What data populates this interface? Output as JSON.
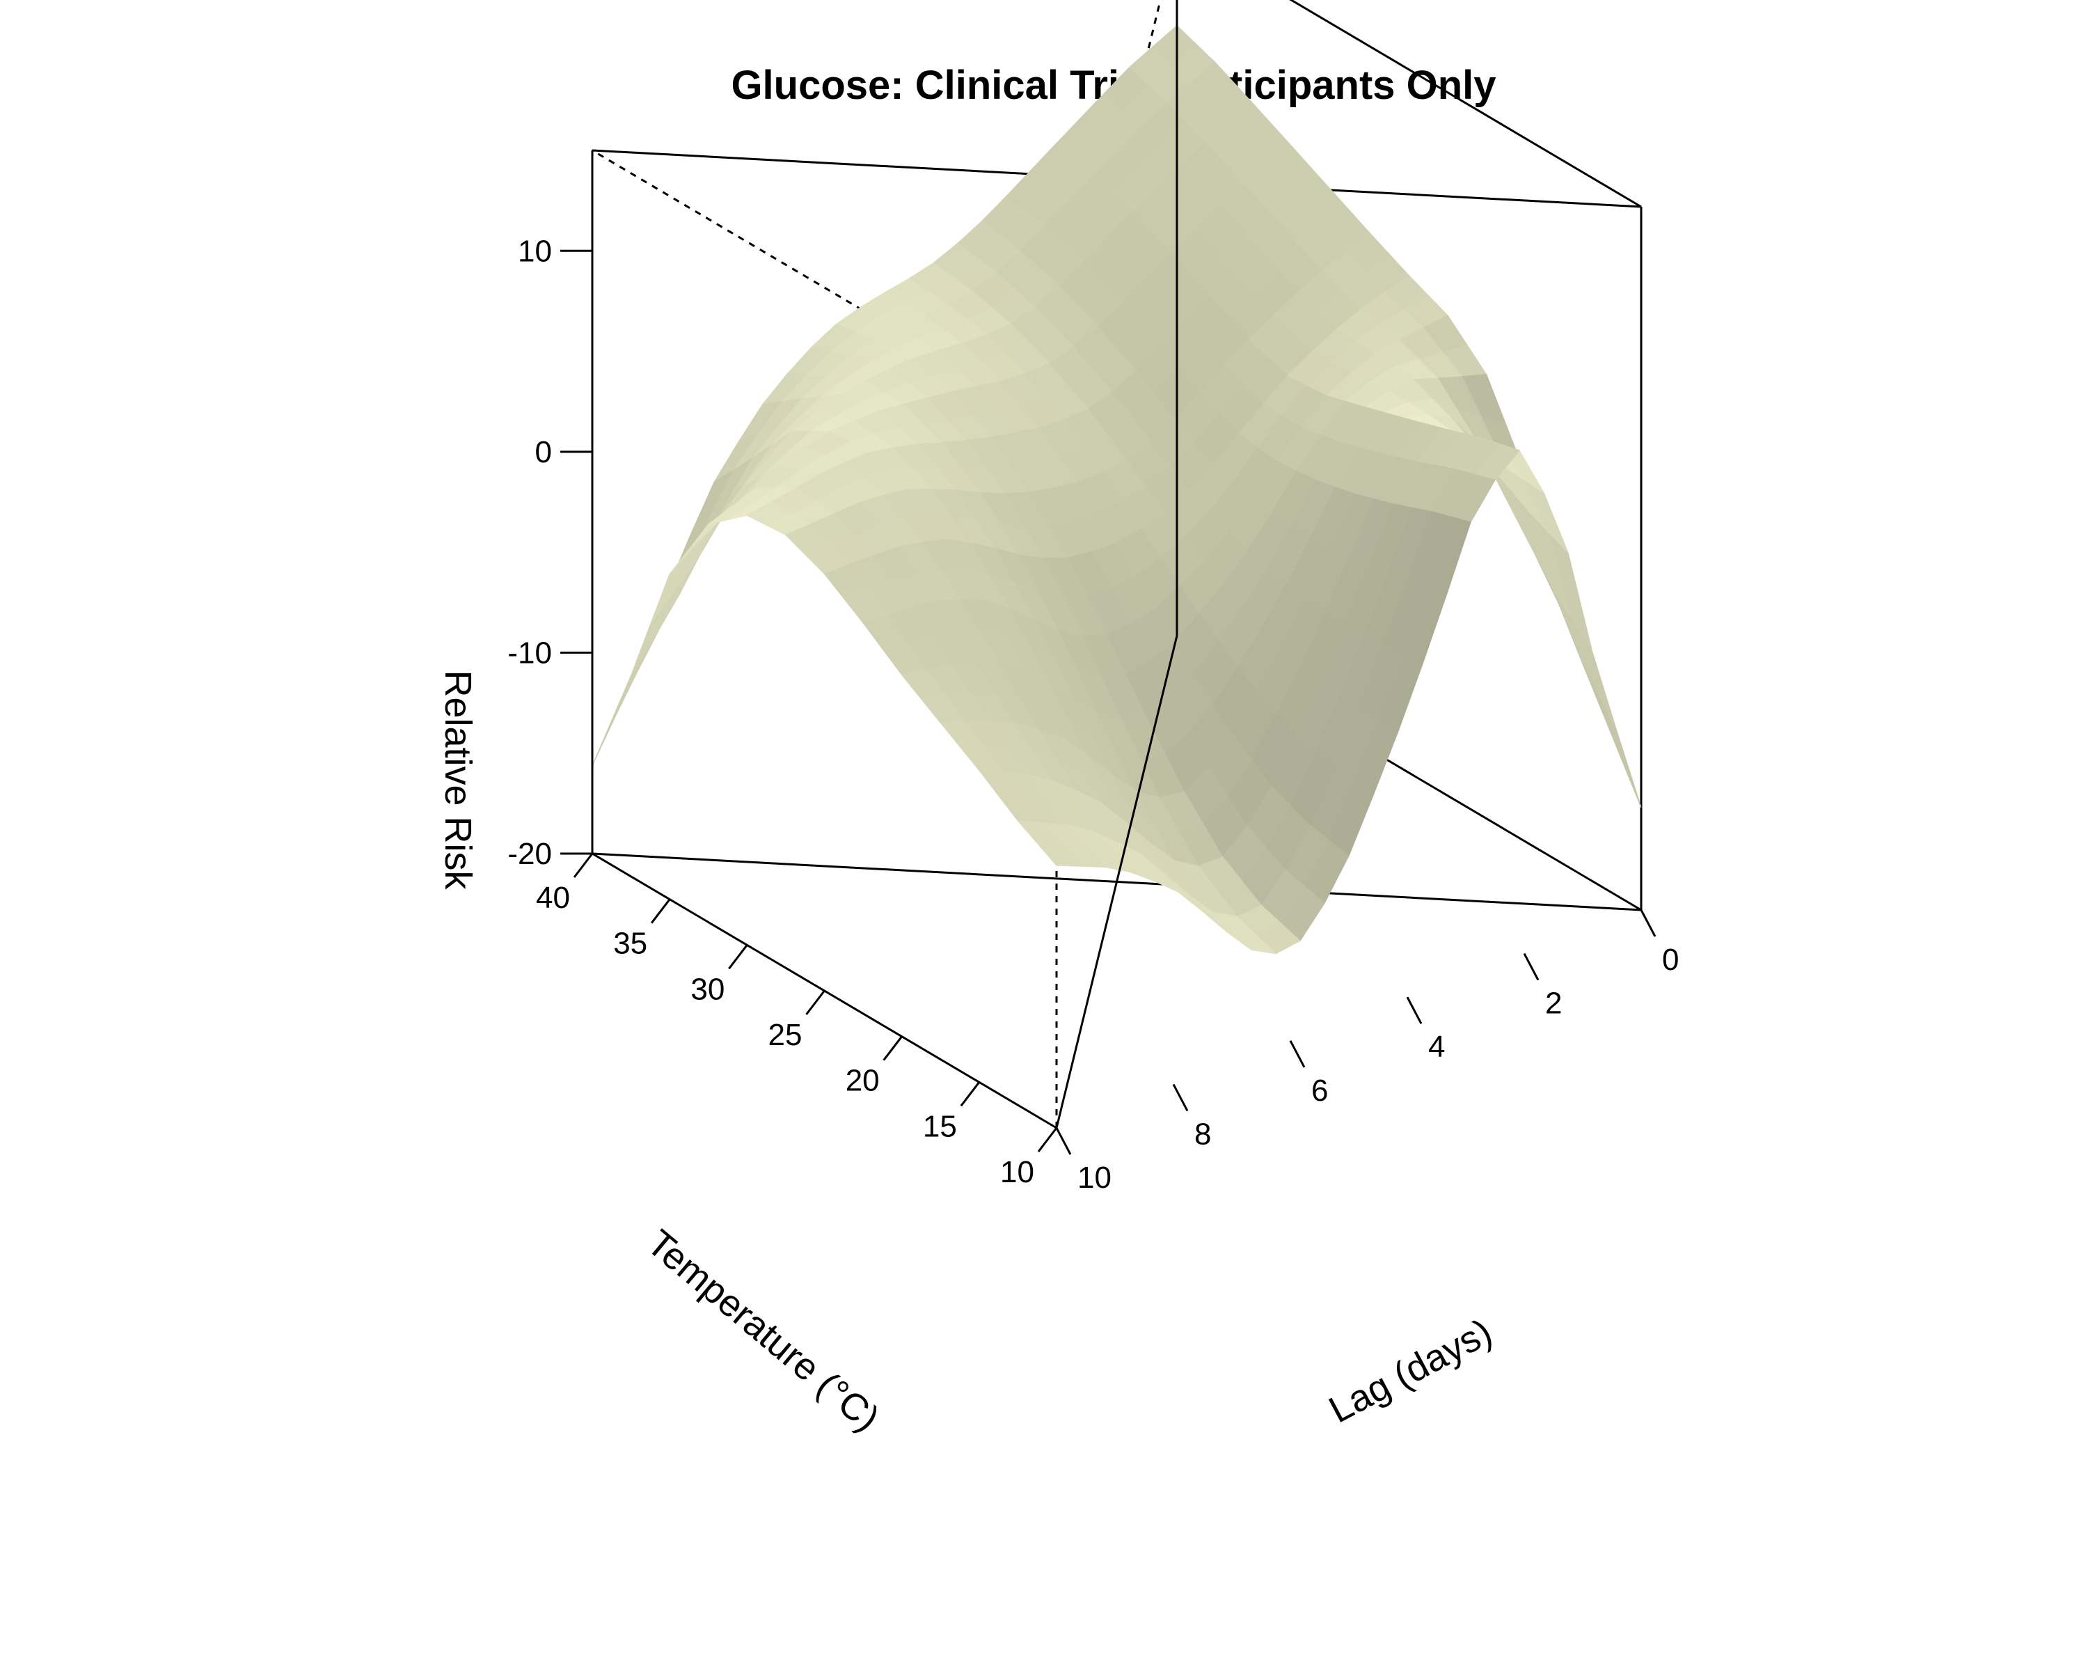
{
  "chart_data": {
    "type": "surface",
    "title": "Glucose: Clinical Trial Participants Only",
    "xlabel": "Temperature (°C)",
    "ylabel": "Lag (days)",
    "zlabel": "Relative Risk",
    "xlim": [
      10,
      40
    ],
    "ylim": [
      0,
      10
    ],
    "zlim": [
      -20,
      15
    ],
    "x_ticks": [
      "10",
      "15",
      "20",
      "25",
      "30",
      "35",
      "40"
    ],
    "y_ticks": [
      "0",
      "2",
      "4",
      "6",
      "8",
      "10"
    ],
    "z_ticks": [
      "-20",
      "-10",
      "0",
      "10"
    ],
    "temperature": [
      10,
      15,
      20,
      25,
      30,
      35,
      40
    ],
    "lag": [
      0,
      2,
      4,
      6,
      8,
      10
    ],
    "relative_risk": [
      [
        -19,
        10,
        -6,
        -18,
        -10,
        -7
      ],
      [
        -8,
        7,
        -6,
        -16,
        -8,
        -4
      ],
      [
        3,
        4,
        -5,
        -10,
        -3,
        -2
      ],
      [
        5,
        2,
        -3,
        -3,
        1,
        1
      ],
      [
        7,
        4,
        0,
        1,
        3,
        2
      ],
      [
        9,
        6,
        2,
        3,
        2,
        -3
      ],
      [
        11,
        7,
        3,
        2,
        -4,
        -19
      ]
    ],
    "surface_color": "#f2f3cf",
    "shade_color": "#9a9a85"
  }
}
